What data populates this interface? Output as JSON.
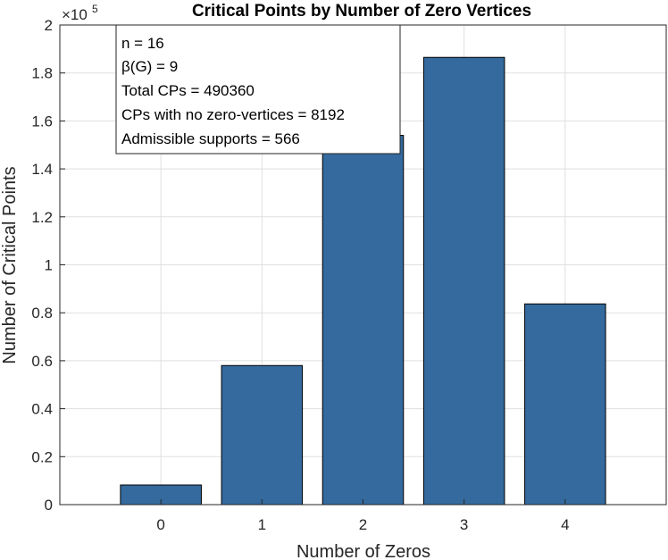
{
  "chart_data": {
    "type": "bar",
    "title": "Critical Points by Number of Zero Vertices",
    "xlabel": "Number of Zeros",
    "ylabel": "Number of Critical Points",
    "categories": [
      "0",
      "1",
      "2",
      "3",
      "4"
    ],
    "values": [
      8192,
      58000,
      154000,
      186500,
      83700
    ],
    "ylim": [
      0,
      200000
    ],
    "xlim": [
      -1,
      5
    ],
    "yticks": [
      0,
      20000,
      40000,
      60000,
      80000,
      100000,
      120000,
      140000,
      160000,
      180000,
      200000
    ],
    "ytick_labels": [
      "0",
      "0.2",
      "0.4",
      "0.6",
      "0.8",
      "1",
      "1.2",
      "1.4",
      "1.6",
      "1.8",
      "2"
    ],
    "y_exponent_label": "×10",
    "y_exponent_power": "5",
    "grid": true,
    "bar_color": "#346a9e"
  },
  "annotation": {
    "lines": [
      "n = 16",
      "β(G) = 9",
      "Total CPs = 490360",
      "CPs with no zero-vertices = 8192",
      "Admissible supports = 566"
    ]
  }
}
